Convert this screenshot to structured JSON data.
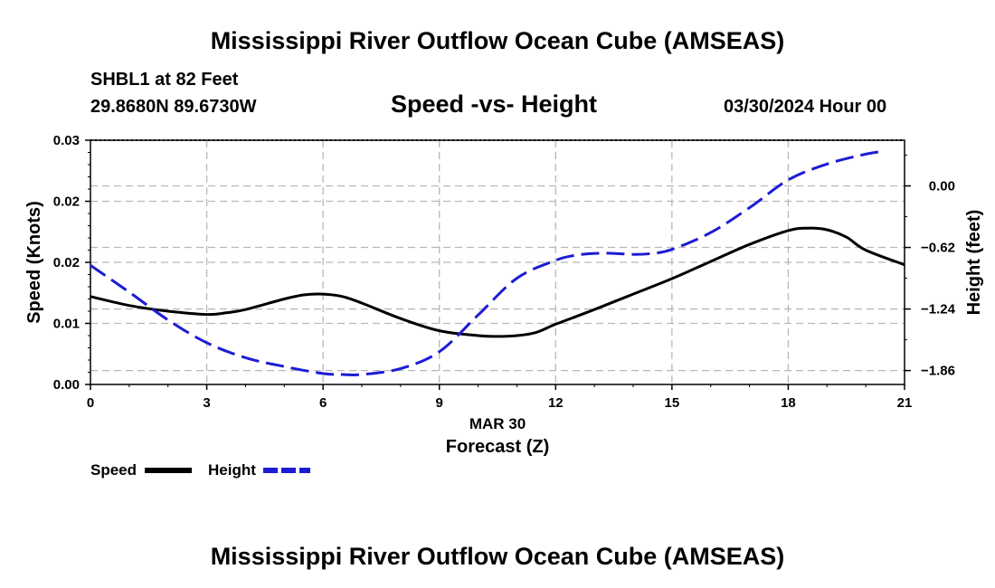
{
  "header": {
    "title": "Mississippi River Outflow Ocean Cube (AMSEAS)",
    "station": "SHBL1 at 82 Feet",
    "coords": "29.8680N  89.6730W",
    "subtitle": "Speed -vs- Height",
    "datetime": "03/30/2024 Hour 00"
  },
  "footer": {
    "title": "Mississippi River Outflow Ocean Cube (AMSEAS)"
  },
  "chart_data": {
    "type": "line",
    "title": "Speed -vs- Height",
    "xlabel": "Forecast (Z)",
    "xlabel_date": "MAR 30",
    "ylabel_left": "Speed (Knots)",
    "ylabel_right": "Height (feet)",
    "xlim": [
      0,
      21
    ],
    "ylim_left": [
      0,
      0.03
    ],
    "ylim_right": [
      -2.0,
      0.46
    ],
    "x_ticks": [
      0,
      3,
      6,
      9,
      12,
      15,
      18,
      21
    ],
    "x_tick_labels": [
      "0",
      "3",
      "6",
      "9",
      "12",
      "15",
      "18",
      "21"
    ],
    "y_left_ticks": [
      0,
      0.0075,
      0.015,
      0.0225,
      0.03
    ],
    "y_left_tick_labels": [
      "0.00",
      "0.01",
      "0.02",
      "0.02",
      "0.03"
    ],
    "y_right_ticks": [
      -1.86,
      -1.24,
      -0.62,
      0.0
    ],
    "y_right_tick_labels": [
      "−1.86",
      "−1.24",
      "−0.62",
      "0.00"
    ],
    "grid": true,
    "series": [
      {
        "name": "Speed",
        "axis": "left",
        "color": "#000000",
        "dash": "solid",
        "x": [
          0,
          1,
          2,
          3,
          3.5,
          4,
          5,
          5.5,
          6,
          6.5,
          7,
          8,
          9,
          10,
          10.5,
          11,
          11.5,
          12,
          13,
          14,
          15,
          16,
          17,
          18,
          18.5,
          19,
          19.5,
          20,
          21
        ],
        "values": [
          0.0108,
          0.0097,
          0.009,
          0.0086,
          0.0088,
          0.0092,
          0.0105,
          0.011,
          0.0111,
          0.0108,
          0.01,
          0.0081,
          0.0066,
          0.006,
          0.0059,
          0.006,
          0.0064,
          0.0074,
          0.0092,
          0.0111,
          0.013,
          0.0151,
          0.0172,
          0.0189,
          0.0192,
          0.019,
          0.0181,
          0.0165,
          0.0147
        ]
      },
      {
        "name": "Height",
        "axis": "right",
        "color": "#1c1cd4",
        "dash": "dashed",
        "x": [
          0,
          1,
          2,
          3,
          4,
          5,
          6,
          6.5,
          7,
          8,
          9,
          10,
          11,
          12,
          12.5,
          13,
          13.5,
          14,
          14.5,
          15,
          16,
          17,
          18,
          19,
          20,
          20.5
        ],
        "values": [
          -0.8,
          -1.07,
          -1.35,
          -1.58,
          -1.73,
          -1.82,
          -1.89,
          -1.9,
          -1.9,
          -1.84,
          -1.67,
          -1.3,
          -0.93,
          -0.75,
          -0.7,
          -0.68,
          -0.68,
          -0.69,
          -0.68,
          -0.64,
          -0.47,
          -0.22,
          0.06,
          0.22,
          0.32,
          0.35
        ]
      }
    ],
    "legend": [
      {
        "label": "Speed",
        "color": "#000000",
        "dash": "solid"
      },
      {
        "label": "Height",
        "color": "#1c1cd4",
        "dash": "dashed"
      }
    ]
  }
}
